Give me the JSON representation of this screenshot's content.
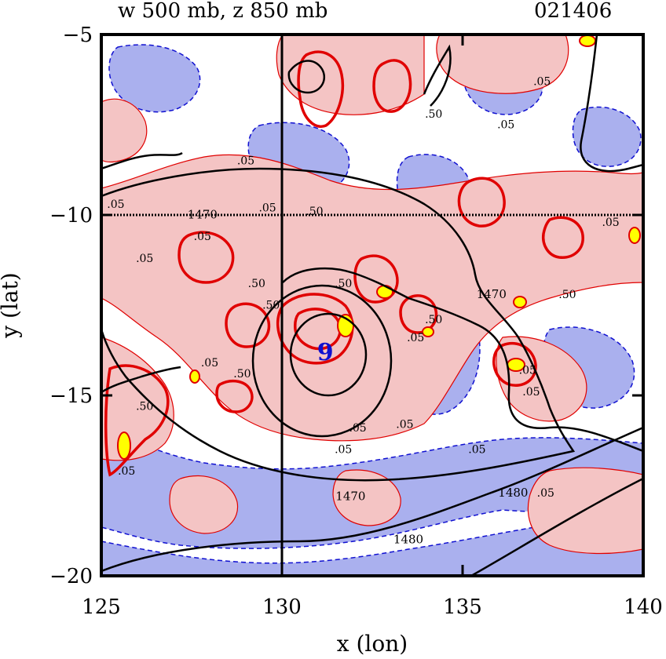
{
  "header": {
    "title": "w 500 mb, z 850 mb",
    "timestamp": "021406"
  },
  "chart_data": {
    "type": "contour",
    "title": "w 500 mb, z 850 mb",
    "timestamp": "021406",
    "xlabel": "x (lon)",
    "ylabel": "y (lat)",
    "xlim": [
      125,
      140
    ],
    "ylim": [
      -20,
      -5
    ],
    "x_ticks": [
      125,
      130,
      135,
      140
    ],
    "x_tick_labels": [
      "125",
      "130",
      "135",
      "140"
    ],
    "y_ticks": [
      -5,
      -10,
      -15,
      -20
    ],
    "y_tick_labels": [
      "−5",
      "−10",
      "−15",
      "−20"
    ],
    "crosshair": {
      "lon": 130,
      "lat": -10
    },
    "storm_center": {
      "lon": 131.2,
      "lat": -13.8,
      "symbol": "9"
    },
    "colors": {
      "upward": "#f4c4c4",
      "downward": "#aab0ee",
      "w_contour": "#e00000",
      "w_negative_contour": "#1010d0",
      "z_contour": "#000000",
      "w_max": "#ffff00"
    },
    "w_contour_labels": [
      {
        "lon": 129.0,
        "lat": -8.6,
        "text": ".05"
      },
      {
        "lon": 125.4,
        "lat": -9.8,
        "text": ".05"
      },
      {
        "lon": 134.2,
        "lat": -7.3,
        "text": ".50"
      },
      {
        "lon": 136.2,
        "lat": -7.6,
        "text": ".05"
      },
      {
        "lon": 126.2,
        "lat": -11.3,
        "text": ".05"
      },
      {
        "lon": 129.6,
        "lat": -9.9,
        "text": ".05"
      },
      {
        "lon": 130.9,
        "lat": -10.0,
        "text": ".50"
      },
      {
        "lon": 129.7,
        "lat": -12.6,
        "text": ".50"
      },
      {
        "lon": 131.7,
        "lat": -12.0,
        "text": ".50"
      },
      {
        "lon": 128.0,
        "lat": -14.2,
        "text": ".05"
      },
      {
        "lon": 128.9,
        "lat": -14.5,
        "text": ".50"
      },
      {
        "lon": 126.2,
        "lat": -15.4,
        "text": ".50"
      },
      {
        "lon": 125.7,
        "lat": -17.2,
        "text": ".05"
      },
      {
        "lon": 133.7,
        "lat": -13.5,
        "text": ".05"
      },
      {
        "lon": 134.2,
        "lat": -13.0,
        "text": ".50"
      },
      {
        "lon": 132.1,
        "lat": -16.0,
        "text": ".05"
      },
      {
        "lon": 133.4,
        "lat": -15.9,
        "text": ".05"
      },
      {
        "lon": 135.4,
        "lat": -16.6,
        "text": ".05"
      },
      {
        "lon": 136.8,
        "lat": -14.4,
        "text": ".05"
      },
      {
        "lon": 136.9,
        "lat": -15.0,
        "text": ".05"
      },
      {
        "lon": 137.9,
        "lat": -12.3,
        "text": ".50"
      },
      {
        "lon": 139.1,
        "lat": -10.3,
        "text": ".05"
      },
      {
        "lon": 137.2,
        "lat": -6.4,
        "text": ".05"
      },
      {
        "lon": 131.7,
        "lat": -16.6,
        "text": ".05"
      },
      {
        "lon": 137.3,
        "lat": -17.8,
        "text": ".05"
      },
      {
        "lon": 129.3,
        "lat": -12.0,
        "text": ".50"
      },
      {
        "lon": 127.8,
        "lat": -10.7,
        "text": ".05"
      }
    ],
    "z_contour_labels": [
      {
        "lon": 127.8,
        "lat": -10.1,
        "text": "1470"
      },
      {
        "lon": 135.8,
        "lat": -12.3,
        "text": "1470"
      },
      {
        "lon": 131.9,
        "lat": -17.9,
        "text": "1470"
      },
      {
        "lon": 133.5,
        "lat": -19.1,
        "text": "1480"
      },
      {
        "lon": 136.4,
        "lat": -17.8,
        "text": "1480"
      }
    ]
  }
}
